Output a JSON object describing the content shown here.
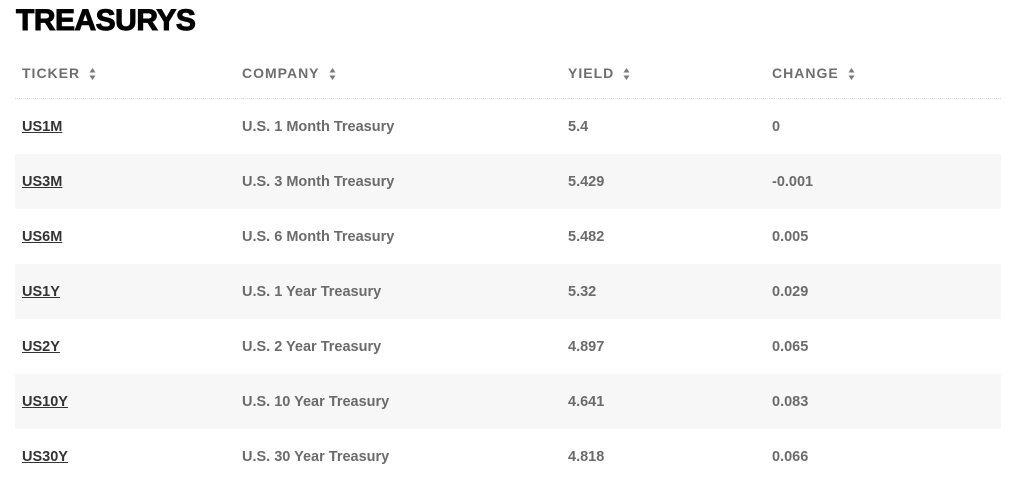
{
  "title": "TREASURYS",
  "icons": {
    "sort": "sort-up-down-icon"
  },
  "colors": {
    "row_alt": "#f7f7f7",
    "header_text": "#6e6e6e",
    "ticker_link": "#333333"
  },
  "columns": [
    "TICKER",
    "COMPANY",
    "YIELD",
    "CHANGE"
  ],
  "rows": [
    {
      "ticker": "US1M",
      "company": "U.S. 1 Month Treasury",
      "yield": "5.4",
      "change": "0"
    },
    {
      "ticker": "US3M",
      "company": "U.S. 3 Month Treasury",
      "yield": "5.429",
      "change": "-0.001"
    },
    {
      "ticker": "US6M",
      "company": "U.S. 6 Month Treasury",
      "yield": "5.482",
      "change": "0.005"
    },
    {
      "ticker": "US1Y",
      "company": "U.S. 1 Year Treasury",
      "yield": "5.32",
      "change": "0.029"
    },
    {
      "ticker": "US2Y",
      "company": "U.S. 2 Year Treasury",
      "yield": "4.897",
      "change": "0.065"
    },
    {
      "ticker": "US10Y",
      "company": "U.S. 10 Year Treasury",
      "yield": "4.641",
      "change": "0.083"
    },
    {
      "ticker": "US30Y",
      "company": "U.S. 30 Year Treasury",
      "yield": "4.818",
      "change": "0.066"
    }
  ]
}
